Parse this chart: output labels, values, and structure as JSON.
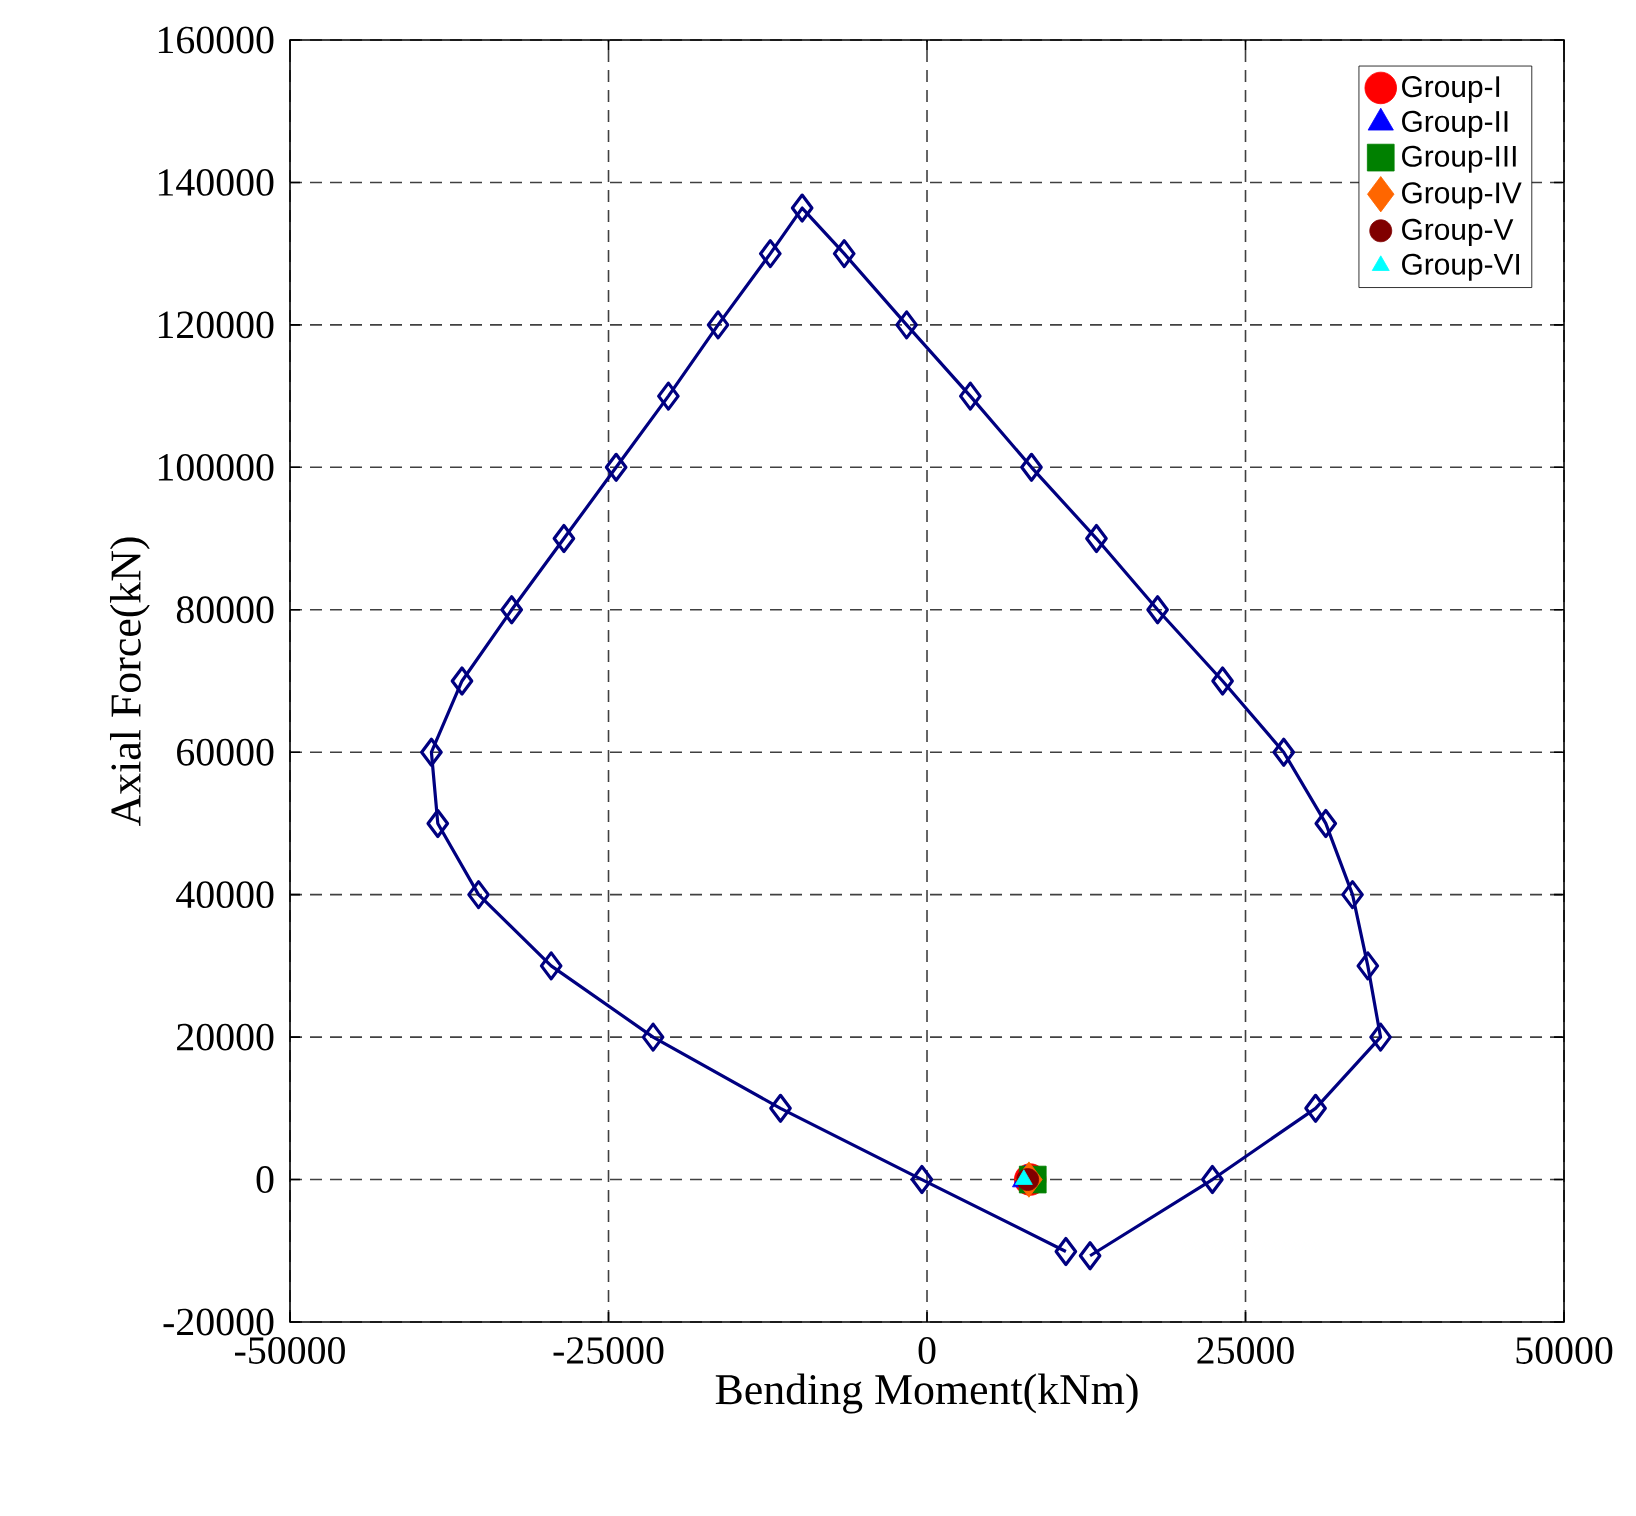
{
  "chart_data": {
    "type": "scatter",
    "xlabel": "Bending Moment(kNm)",
    "ylabel": "Axial Force(kN)",
    "xlim": [
      -50000,
      50000
    ],
    "ylim": [
      -20000,
      160000
    ],
    "xticks": [
      -50000,
      -25000,
      0,
      25000,
      50000
    ],
    "yticks": [
      -20000,
      0,
      20000,
      40000,
      60000,
      80000,
      100000,
      120000,
      140000,
      160000
    ],
    "grid": true,
    "legend": "top right",
    "series": [
      {
        "type": "line",
        "color": "#000080",
        "marker": "diamond",
        "x": [
          12800,
          22400,
          30500,
          35600,
          34600,
          33400,
          31300,
          28000,
          23200,
          18100,
          13300,
          8200,
          3400,
          -1600,
          -6500,
          -9800,
          -12300,
          -16400,
          -20300,
          -24400,
          -28500,
          -32600,
          -36500,
          -38900,
          -38400,
          -35200,
          -29500,
          -21500,
          -11500,
          -400,
          10900
        ],
        "values": [
          -10700,
          0,
          10000,
          20000,
          30000,
          40000,
          50000,
          60000,
          70000,
          80000,
          90000,
          100000,
          110000,
          120000,
          130000,
          136400,
          130000,
          120000,
          110000,
          100000,
          90000,
          80000,
          70000,
          60000,
          50000,
          40000,
          30000,
          20000,
          10000,
          0,
          -10100
        ]
      },
      {
        "name": "Group-I",
        "color": "#ff0000",
        "marker": "circle",
        "x": [
          8100
        ],
        "values": [
          0
        ]
      },
      {
        "name": "Group-II",
        "color": "#0000ff",
        "marker": "triangle",
        "x": [
          7700
        ],
        "values": [
          0
        ]
      },
      {
        "name": "Group-III",
        "color": "#008000",
        "marker": "square",
        "x": [
          8300
        ],
        "values": [
          0
        ]
      },
      {
        "name": "Group-IV",
        "color": "#ff6600",
        "marker": "diamond",
        "x": [
          8000
        ],
        "values": [
          0
        ]
      },
      {
        "name": "Group-V",
        "color": "#800000",
        "marker": "circle",
        "x": [
          7900
        ],
        "values": [
          0
        ]
      },
      {
        "name": "Group-VI",
        "color": "#00ffff",
        "marker": "triangle",
        "x": [
          7600
        ],
        "values": [
          0
        ]
      }
    ]
  }
}
